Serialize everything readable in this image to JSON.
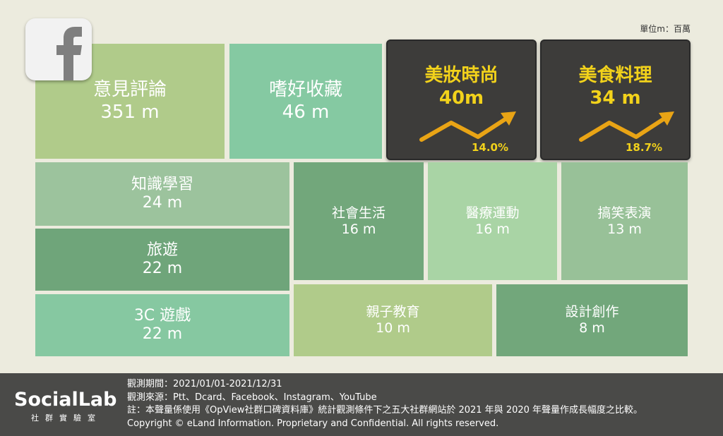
{
  "unit_note": "單位m：百萬",
  "chart_data": {
    "type": "treemap",
    "unit": "m",
    "items": [
      {
        "name": "意見評論",
        "value": 351,
        "label": "351 m"
      },
      {
        "name": "嗜好收藏",
        "value": 46,
        "label": "46 m"
      },
      {
        "name": "美妝時尚",
        "value": 40,
        "label": "40m",
        "growth": "14.0%",
        "highlight": true
      },
      {
        "name": "美食料理",
        "value": 34,
        "label": "34 m",
        "growth": "18.7%",
        "highlight": true
      },
      {
        "name": "知識學習",
        "value": 24,
        "label": "24 m"
      },
      {
        "name": "旅遊",
        "value": 22,
        "label": "22 m"
      },
      {
        "name": "3C 遊戲",
        "value": 22,
        "label": "22 m"
      },
      {
        "name": "社會生活",
        "value": 16,
        "label": "16 m"
      },
      {
        "name": "醫療運動",
        "value": 16,
        "label": "16 m"
      },
      {
        "name": "搞笑表演",
        "value": 13,
        "label": "13 m"
      },
      {
        "name": "親子教育",
        "value": 10,
        "label": "10 m"
      },
      {
        "name": "設計創作",
        "value": 8,
        "label": "8 m"
      }
    ]
  },
  "colors": {
    "background": "#ecebde",
    "highlight_bg": "#3d3c3a",
    "highlight_text": "#f2d21b",
    "footer_bg": "#4a4a48"
  },
  "footer": {
    "brand": "SocialLab",
    "brand_sub": "社群實驗室",
    "period": "觀測期間：2021/01/01-2021/12/31",
    "sources": "觀測來源：Ptt、Dcard、Facebook、Instagram、YouTube",
    "note": "註：本聲量係使用《OpView社群口碑資料庫》統計觀測條件下之五大社群網站於 2021 年與 2020 年聲量作成長幅度之比較。",
    "copyright": "Copyright © eLand Information. Proprietary and Confidential. All rights reserved."
  }
}
